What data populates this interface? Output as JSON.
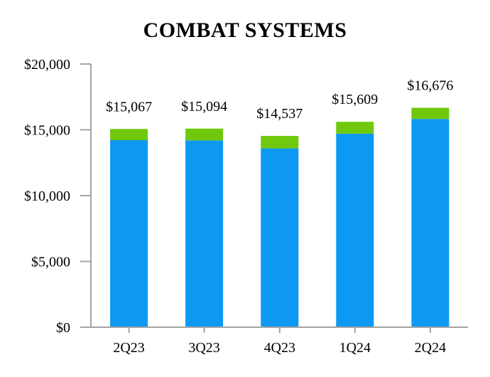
{
  "title": "COMBAT SYSTEMS",
  "chart_data": {
    "type": "bar",
    "stacked": true,
    "title": "COMBAT SYSTEMS",
    "categories": [
      "2Q23",
      "3Q23",
      "4Q23",
      "1Q24",
      "2Q24"
    ],
    "series": [
      {
        "name": "base-segment",
        "color": "#0D99F2",
        "values": [
          14217,
          14194,
          13587,
          14709,
          15826
        ]
      },
      {
        "name": "top-segment",
        "color": "#70C80D",
        "values": [
          850,
          900,
          950,
          900,
          850
        ]
      }
    ],
    "totals": [
      15067,
      15094,
      14537,
      15609,
      16676
    ],
    "total_labels": [
      "$15,067",
      "$15,094",
      "$14,537",
      "$15,609",
      "$16,676"
    ],
    "xlabel": "",
    "ylabel": "",
    "ylim": [
      0,
      20000
    ],
    "ytick_interval": 5000,
    "ytick_labels": [
      "$0",
      "$5,000",
      "$10,000",
      "$15,000",
      "$20,000"
    ],
    "grid": false,
    "legend": "none",
    "axis_color": "#A3A3A3",
    "text_color": "#000000"
  }
}
